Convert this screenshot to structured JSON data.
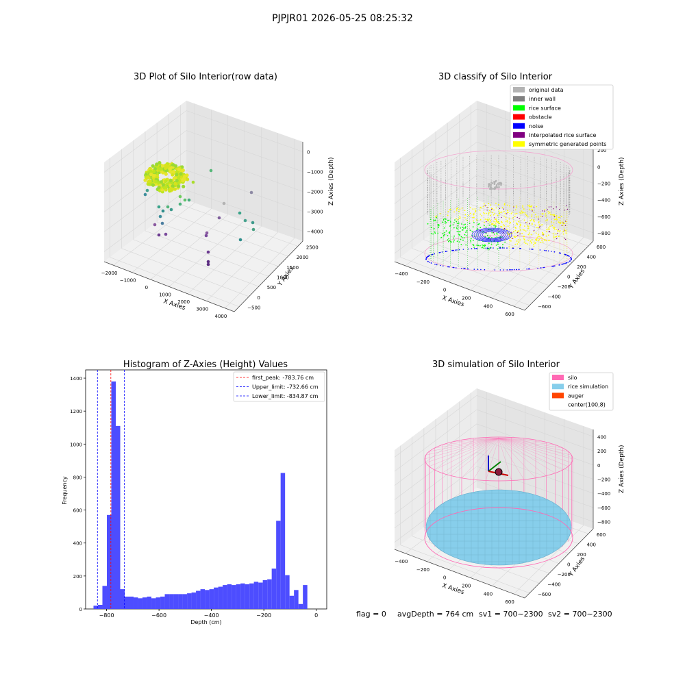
{
  "figure": {
    "suptitle": "PJPJR01 2026-05-25 08:25:32",
    "footer": {
      "flag": "flag = 0",
      "avg_depth": "avgDepth = 764 cm",
      "sv1": "sv1 = 700~2300",
      "sv2": "sv2 = 700~2300"
    }
  },
  "colors": {
    "histogram_bar": "#4d4dff",
    "peak_line": "#ff0000",
    "limit_line": "#0000ff",
    "original_data": "#b3b3b3",
    "inner_wall": "#808080",
    "rice_surface": "#00ff00",
    "obstacle": "#ff0000",
    "noise": "#0000ff",
    "interpolated_rice_surface": "#800080",
    "symmetric_generated_points": "#ffff00",
    "silo": "#ff69b4",
    "rice_simulation": "#87ceeb",
    "auger": "#ff4500"
  },
  "chart_data": [
    {
      "type": "scatter",
      "is_3d": true,
      "title": "3D Plot of Silo Interior(row data)",
      "xlabel": "X Axies",
      "ylabel": "Y Axies",
      "zlabel": "Z Axies (Depth)",
      "xticks": [
        "−2000",
        "−1000",
        "0",
        "1000",
        "2000",
        "3000",
        "4000"
      ],
      "yticks": [
        "−500",
        "0",
        "500",
        "1000",
        "1500",
        "2000",
        "2500"
      ],
      "zticks": [
        "0",
        "−1000",
        "−2000",
        "−3000",
        "−4000"
      ],
      "xlim": [
        -2000,
        4000
      ],
      "ylim": [
        -500,
        2500
      ],
      "zlim": [
        -4500,
        0
      ],
      "colormap": "viridis"
    },
    {
      "type": "scatter",
      "is_3d": true,
      "title": "3D classify of Silo Interior",
      "xlabel": "X Axies",
      "ylabel": "Y Axies",
      "zlabel": "Z Axies (Depth)",
      "xticks": [
        "−400",
        "−200",
        "0",
        "200",
        "400",
        "600"
      ],
      "yticks": [
        "−600",
        "−400",
        "−200",
        "0",
        "200",
        "400",
        "600"
      ],
      "zticks": [
        "200",
        "0",
        "−200",
        "−400",
        "−600",
        "−800"
      ],
      "legend": [
        "original data",
        "inner wall",
        "rice surface",
        "obstacle",
        "noise",
        "interpolated rice surface",
        "symmetric generated points"
      ],
      "legend_position": "top-right"
    },
    {
      "type": "bar",
      "title": "Histogram of Z-Axies (Height) Values",
      "xlabel": "Depth (cm)",
      "ylabel": "Frequency",
      "xlim": [
        -880,
        40
      ],
      "ylim": [
        0,
        1450
      ],
      "xticks": [
        "−800",
        "−600",
        "−400",
        "−200",
        "0"
      ],
      "yticks": [
        0,
        200,
        400,
        600,
        800,
        1000,
        1200,
        1400
      ],
      "bin_width": 17,
      "bin_starts": [
        -850,
        -833,
        -816,
        -799,
        -782,
        -765,
        -748,
        -731,
        -714,
        -697,
        -680,
        -663,
        -646,
        -629,
        -612,
        -595,
        -578,
        -561,
        -544,
        -527,
        -510,
        -493,
        -476,
        -459,
        -442,
        -425,
        -408,
        -391,
        -374,
        -357,
        -340,
        -323,
        -306,
        -289,
        -272,
        -255,
        -238,
        -221,
        -204,
        -187,
        -170,
        -153,
        -136,
        -119,
        -102,
        -85,
        -68,
        -51,
        -34,
        -17
      ],
      "counts": [
        20,
        25,
        140,
        570,
        1380,
        1110,
        120,
        75,
        75,
        70,
        65,
        70,
        75,
        65,
        70,
        75,
        90,
        90,
        90,
        90,
        90,
        95,
        100,
        110,
        120,
        115,
        120,
        130,
        135,
        145,
        150,
        145,
        150,
        155,
        150,
        155,
        165,
        160,
        175,
        180,
        245,
        535,
        825,
        205,
        80,
        115,
        30,
        145,
        0,
        0
      ],
      "vlines": [
        {
          "label": "first_peak: -783.76 cm",
          "x": -783.76,
          "color_key": "peak_line"
        },
        {
          "label": "Upper_limit: -732.66 cm",
          "x": -732.66,
          "color_key": "limit_line"
        },
        {
          "label": "Lower_limit: -834.87 cm",
          "x": -834.87,
          "color_key": "limit_line"
        }
      ],
      "legend_position": "top-right"
    },
    {
      "type": "scatter",
      "is_3d": true,
      "title": "3D simulation of Silo Interior",
      "xlabel": "X Axies",
      "ylabel": "Y Axies",
      "zlabel": "Z Axies (Depth)",
      "xticks": [
        "−400",
        "−200",
        "0",
        "200",
        "400",
        "600"
      ],
      "yticks": [
        "−600",
        "−400",
        "−200",
        "0",
        "200",
        "400",
        "600"
      ],
      "zticks": [
        "400",
        "200",
        "0",
        "−200",
        "−400",
        "−600",
        "−800"
      ],
      "legend": [
        "silo",
        "rice simulation",
        "auger",
        "center(100,8)"
      ],
      "legend_position": "top-right"
    }
  ]
}
